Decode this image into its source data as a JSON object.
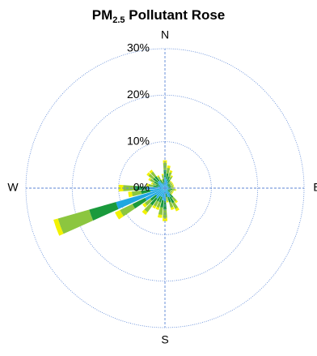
{
  "chart_data": {
    "type": "pollutant_rose",
    "title": [
      "PM",
      "2.5",
      " Pollutant Rose"
    ],
    "x": [
      0,
      10,
      20,
      30,
      40,
      50,
      60,
      70,
      80,
      90,
      100,
      110,
      120,
      130,
      140,
      150,
      160,
      170,
      180,
      190,
      200,
      210,
      220,
      230,
      240,
      250,
      260,
      270,
      280,
      290,
      300,
      310,
      320,
      330,
      340,
      350
    ],
    "xlim": [
      0,
      360
    ],
    "xticks": [
      {
        "value": 0,
        "label": "N"
      },
      {
        "value": 90,
        "label": "E"
      },
      {
        "value": 180,
        "label": "S"
      },
      {
        "value": 270,
        "label": "W"
      }
    ],
    "ylim": [
      0,
      30
    ],
    "yticks": [
      {
        "value": 0,
        "label": "0%"
      },
      {
        "value": 10,
        "label": "10%"
      },
      {
        "value": 20,
        "label": "20%"
      },
      {
        "value": 30,
        "label": "30%"
      }
    ],
    "grid": true,
    "series": [
      {
        "color": "#1ea7e1",
        "values": [
          2.4,
          2,
          1.6,
          1.2,
          0.8,
          0.8,
          0.8,
          0.8,
          0.8,
          0.8,
          1,
          0.8,
          0.8,
          0.8,
          1.6,
          2.2,
          2,
          1.2,
          2.8,
          2.6,
          2,
          2,
          2.8,
          2.4,
          4.8,
          11,
          3.2,
          4,
          1.6,
          1.2,
          1.6,
          2,
          2,
          1.2,
          0.8,
          1.2
        ]
      },
      {
        "color": "#1a9a3c",
        "values": [
          1.5,
          1.2,
          1,
          0.8,
          0.5,
          0.5,
          0.5,
          0.5,
          0.5,
          0.5,
          0.6,
          0.5,
          0.5,
          0.5,
          1,
          1.4,
          1.2,
          0.8,
          1.8,
          1.6,
          1.2,
          1.2,
          1.8,
          1.5,
          3,
          6,
          2,
          2.5,
          1,
          0.8,
          1,
          1.2,
          1.2,
          0.8,
          0.5,
          0.8
        ]
      },
      {
        "color": "#8cc63f",
        "values": [
          1.5,
          1.2,
          1,
          0.8,
          0.5,
          0.5,
          0.5,
          0.5,
          0.5,
          0.5,
          0.6,
          0.5,
          0.5,
          0.5,
          1,
          1.4,
          1.2,
          0.8,
          1.8,
          1.6,
          1.2,
          1.2,
          1.8,
          1.5,
          3,
          7,
          2,
          2.5,
          1,
          0.8,
          1,
          1.2,
          1.2,
          0.8,
          0.5,
          0.8
        ]
      },
      {
        "color": "#f2f200",
        "values": [
          0.6,
          0.5,
          0.4,
          0.3,
          0.2,
          0.2,
          0.2,
          0.2,
          0.2,
          0.2,
          0.25,
          0.2,
          0.2,
          0.2,
          0.4,
          0.55,
          0.5,
          0.3,
          0.7,
          0.65,
          0.5,
          0.5,
          0.7,
          0.6,
          1.2,
          1,
          0.8,
          1,
          0.4,
          0.3,
          0.4,
          0.5,
          0.5,
          0.3,
          0.2,
          0.3
        ]
      }
    ]
  }
}
